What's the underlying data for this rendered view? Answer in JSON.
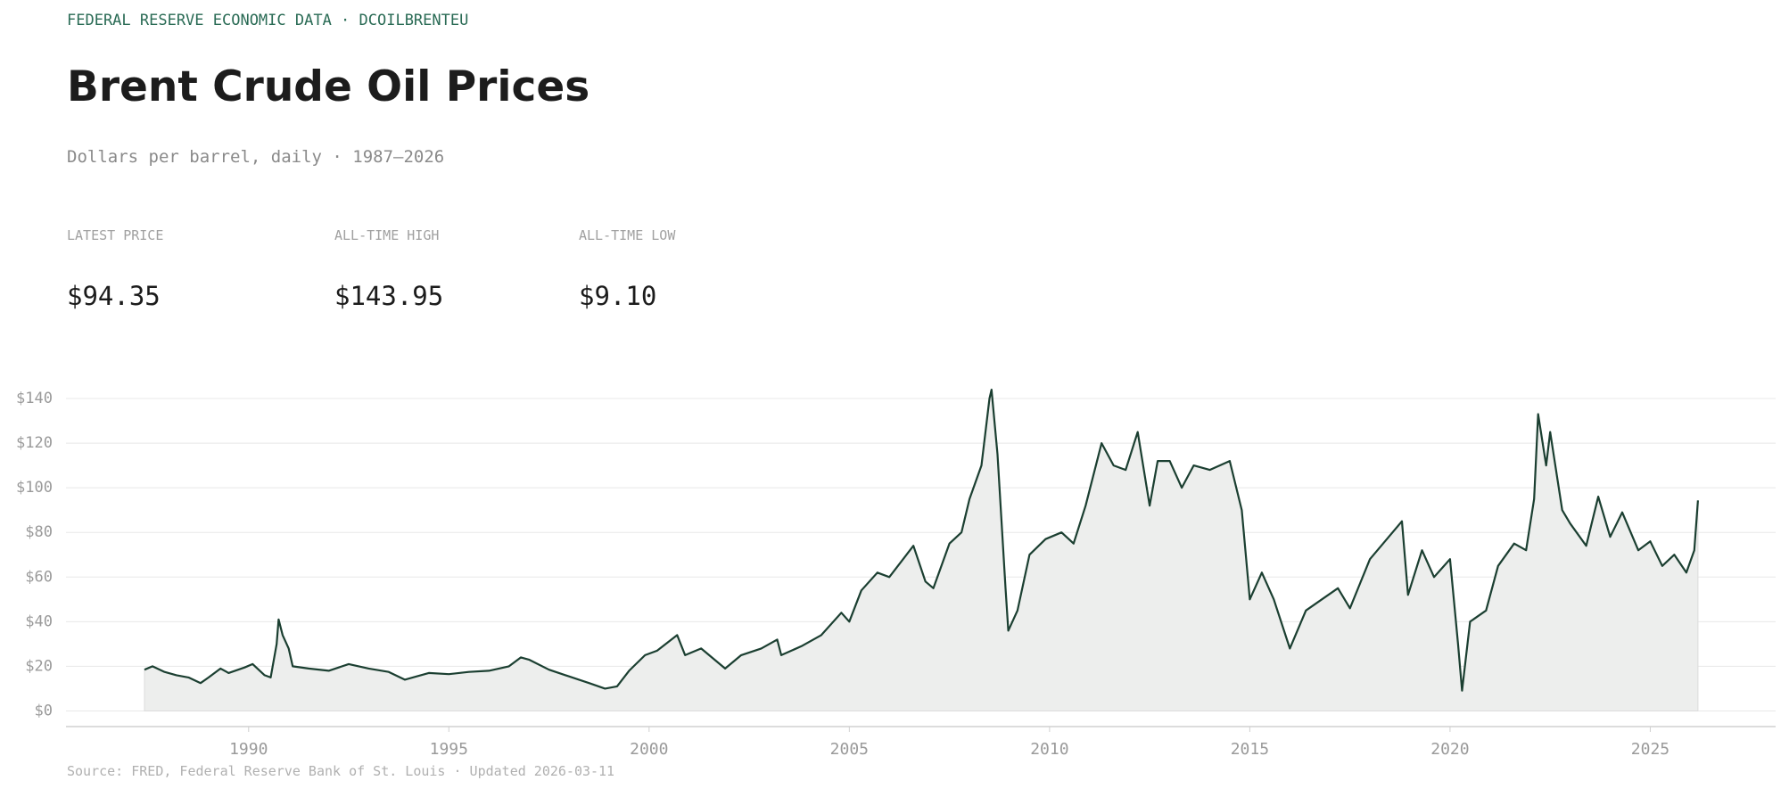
{
  "header": {
    "kicker": "FEDERAL RESERVE ECONOMIC DATA · DCOILBRENTEU",
    "title": "Brent Crude Oil Prices",
    "subtitle": "Dollars per barrel, daily · 1987–2026"
  },
  "stats": [
    {
      "label": "LATEST PRICE",
      "value": "$94.35"
    },
    {
      "label": "ALL-TIME HIGH",
      "value": "$143.95"
    },
    {
      "label": "ALL-TIME LOW",
      "value": "$9.10"
    }
  ],
  "chart_data": {
    "type": "line",
    "area": true,
    "color": "#1b3f31",
    "fill": "#edeeed",
    "grid": true,
    "x": [
      1987.4,
      1987.6,
      1987.9,
      1988.2,
      1988.5,
      1988.8,
      1989.0,
      1989.3,
      1989.5,
      1989.9,
      1990.1,
      1990.4,
      1990.55,
      1990.7,
      1990.75,
      1990.85,
      1991.0,
      1991.1,
      1991.5,
      1992.0,
      1992.5,
      1993.0,
      1993.5,
      1993.9,
      1994.5,
      1995.0,
      1995.5,
      1996.0,
      1996.5,
      1996.8,
      1997.0,
      1997.5,
      1998.0,
      1998.5,
      1998.9,
      1999.2,
      1999.5,
      1999.9,
      2000.2,
      2000.7,
      2000.9,
      2001.3,
      2001.9,
      2002.3,
      2002.8,
      2003.2,
      2003.3,
      2003.8,
      2004.3,
      2004.8,
      2005.0,
      2005.3,
      2005.7,
      2006.0,
      2006.6,
      2006.9,
      2007.1,
      2007.5,
      2007.8,
      2008.0,
      2008.3,
      2008.5,
      2008.55,
      2008.7,
      2008.9,
      2008.97,
      2009.2,
      2009.5,
      2009.9,
      2010.3,
      2010.6,
      2010.9,
      2011.3,
      2011.6,
      2011.9,
      2012.2,
      2012.5,
      2012.7,
      2013.0,
      2013.3,
      2013.6,
      2014.0,
      2014.5,
      2014.8,
      2015.0,
      2015.3,
      2015.6,
      2016.0,
      2016.4,
      2016.8,
      2017.2,
      2017.5,
      2018.0,
      2018.8,
      2018.95,
      2019.3,
      2019.6,
      2020.0,
      2020.2,
      2020.3,
      2020.5,
      2020.9,
      2021.2,
      2021.6,
      2021.9,
      2022.1,
      2022.2,
      2022.4,
      2022.5,
      2022.8,
      2023.0,
      2023.4,
      2023.7,
      2024.0,
      2024.3,
      2024.7,
      2025.0,
      2025.3,
      2025.6,
      2025.9,
      2026.1,
      2026.19
    ],
    "values": [
      18.5,
      20,
      17.5,
      16,
      15,
      12.5,
      15,
      19,
      17,
      19.5,
      21,
      16,
      15,
      30,
      41,
      34,
      28,
      20,
      19,
      18,
      21,
      19,
      17.5,
      14,
      17,
      16.5,
      17.5,
      18,
      20,
      24,
      23,
      18.5,
      15.5,
      12.5,
      10,
      11,
      18,
      25,
      27,
      34,
      25,
      28,
      19,
      25,
      28,
      32,
      25,
      29,
      34,
      44,
      40,
      54,
      62,
      60,
      74,
      58,
      55,
      75,
      80,
      95,
      110,
      140,
      143.95,
      115,
      55,
      36,
      45,
      70,
      77,
      80,
      75,
      92,
      120,
      110,
      108,
      125,
      92,
      112,
      112,
      100,
      110,
      108,
      112,
      90,
      50,
      62,
      50,
      28,
      45,
      50,
      55,
      46,
      68,
      85,
      52,
      72,
      60,
      68,
      30,
      9.1,
      40,
      45,
      65,
      75,
      72,
      95,
      133,
      110,
      125,
      90,
      84,
      74,
      96,
      78,
      89,
      72,
      76,
      65,
      70,
      62,
      72,
      94.35
    ],
    "xlim": [
      1985.44,
      2028.13
    ],
    "xticks": [
      1990,
      1995,
      2000,
      2005,
      2010,
      2015,
      2020,
      2025
    ],
    "ylim": [
      -7,
      140
    ],
    "yticks": [
      {
        "value": 0,
        "label": "$0"
      },
      {
        "value": 20,
        "label": "$20"
      },
      {
        "value": 40,
        "label": "$40"
      },
      {
        "value": 60,
        "label": "$60"
      },
      {
        "value": 80,
        "label": "$80"
      },
      {
        "value": 100,
        "label": "$100"
      },
      {
        "value": 120,
        "label": "$120"
      },
      {
        "value": 140,
        "label": "$140"
      }
    ],
    "source": "Source: FRED, Federal Reserve Bank of St. Louis · Updated 2026-03-11"
  }
}
